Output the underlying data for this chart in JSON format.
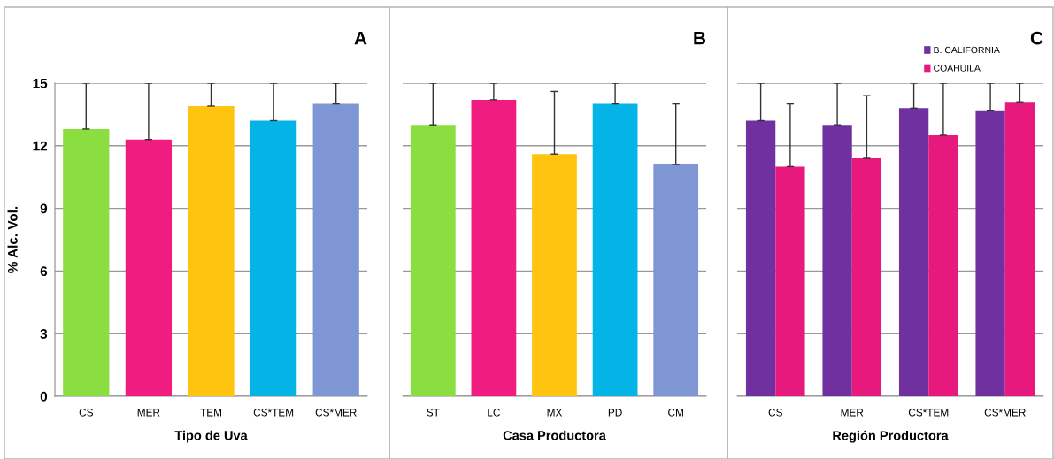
{
  "chart_data": [
    {
      "type": "bar",
      "title": "A",
      "xlabel": "Tipo de Uva",
      "ylabel": "% Alc. Vol.",
      "categories": [
        "CS",
        "MER",
        "TEM",
        "CS*TEM",
        "CS*MER"
      ],
      "values": [
        12.8,
        12.3,
        13.9,
        13.2,
        14.0
      ],
      "colors": [
        "#8ade40",
        "#f01c80",
        "#ffc410",
        "#04b4e6",
        "#7f96d4"
      ],
      "errors": [
        [
          12.8,
          15
        ],
        [
          12.3,
          15
        ],
        [
          13.9,
          15
        ],
        [
          13.2,
          15
        ],
        [
          14.0,
          15
        ]
      ],
      "ylim": [
        0,
        15
      ],
      "yticks": [
        0,
        3,
        6,
        9,
        12,
        15
      ],
      "grid": "y"
    },
    {
      "type": "bar",
      "title": "B",
      "xlabel": "Casa Productora",
      "categories": [
        "ST",
        "LC",
        "MX",
        "PD",
        "CM"
      ],
      "values": [
        13.0,
        14.2,
        11.6,
        14.0,
        11.1
      ],
      "colors": [
        "#8ade40",
        "#f01c80",
        "#ffc410",
        "#04b4e6",
        "#7f96d4"
      ],
      "errors": [
        [
          13.0,
          15
        ],
        [
          14.2,
          15
        ],
        [
          11.6,
          14.6
        ],
        [
          14.0,
          15
        ],
        [
          11.1,
          14.0
        ]
      ],
      "ylim": [
        0,
        15
      ],
      "yticks": [
        0,
        3,
        6,
        9,
        12,
        15
      ],
      "grid": "y",
      "tick_labels": "x"
    },
    {
      "type": "bar",
      "title": "C",
      "xlabel": "Región Productora",
      "categories": [
        "CS",
        "MER",
        "CS*TEM",
        "CS*MER"
      ],
      "series": [
        {
          "name": "B. CALIFORNIA",
          "color": "#7030a0",
          "values": [
            13.2,
            13.0,
            13.8,
            13.7
          ],
          "errors": [
            [
              13.2,
              15
            ],
            [
              13.0,
              15
            ],
            [
              13.8,
              15
            ],
            [
              13.7,
              15
            ]
          ]
        },
        {
          "name": "COAHUILA",
          "color": "#e8197d",
          "values": [
            11.0,
            11.4,
            12.5,
            14.1
          ],
          "errors": [
            [
              11.0,
              14.0
            ],
            [
              11.4,
              14.4
            ],
            [
              12.5,
              15
            ],
            [
              14.1,
              15
            ]
          ]
        }
      ],
      "ylim": [
        0,
        15
      ],
      "yticks": [
        0,
        3,
        6,
        9,
        12,
        15
      ],
      "grid": "y",
      "legend": "top right",
      "tick_labels": "x"
    }
  ]
}
